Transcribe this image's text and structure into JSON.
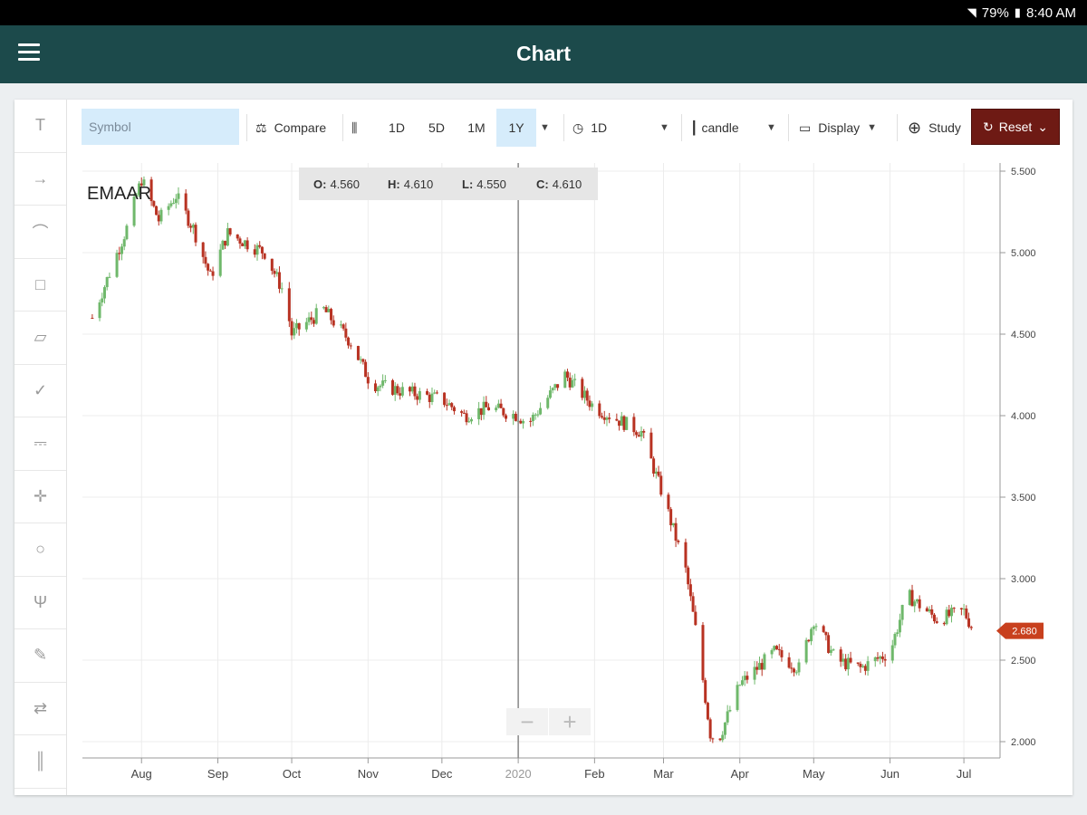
{
  "status_bar": {
    "battery": "79%",
    "time": "8:40 AM",
    "icons": [
      "wifi-icon",
      "battery-icon"
    ]
  },
  "app_bar": {
    "title": "Chart",
    "menu_icon": "hamburger-menu-icon"
  },
  "left_tools": [
    "text-tool-icon",
    "arrow-tool-icon",
    "arc-tool-icon",
    "callout-tool-icon",
    "rectangle-tool-icon",
    "check-tool-icon",
    "step-line-tool-icon",
    "crosshair-tool-icon",
    "ellipse-tool-icon",
    "pitchfork-tool-icon",
    "pencil-tool-icon",
    "parallel-lines-tool-icon",
    "vertical-lines-tool-icon"
  ],
  "toolbar": {
    "symbol_placeholder": "Symbol",
    "compare_label": "Compare",
    "periods": [
      "1D",
      "5D",
      "1M",
      "1Y"
    ],
    "active_period": "1Y",
    "interval_label": "1D",
    "chart_type_label": "candle",
    "display_label": "Display",
    "study_label": "Study",
    "reset_label": "Reset"
  },
  "ohlc": {
    "open_label": "O:",
    "open": "4.560",
    "high_label": "H:",
    "high": "4.610",
    "low_label": "L:",
    "low": "4.550",
    "close_label": "C:",
    "close": "4.610"
  },
  "colors": {
    "up": "#6fb86b",
    "down": "#b83222",
    "accent_dark": "#1c4a4b",
    "reset": "#6e1a14"
  },
  "chart_data": {
    "type": "candlestick",
    "symbol": "EMAAR",
    "x_tick_labels": [
      "Aug",
      "Sep",
      "Oct",
      "Nov",
      "Dec",
      "2020",
      "Feb",
      "Mar",
      "Apr",
      "May",
      "Jun",
      "Jul"
    ],
    "y_tick_labels": [
      "5.500",
      "5.000",
      "4.500",
      "4.000",
      "3.500",
      "3.000",
      "2.500",
      "2.000"
    ],
    "ylim": [
      1.9,
      5.55
    ],
    "current_price": "2.680",
    "grid": true,
    "approx_close_series": [
      {
        "date": "Jul 12",
        "close": 4.6
      },
      {
        "date": "Jul 26",
        "close": 5.15
      },
      {
        "date": "Aug 1",
        "close": 5.45
      },
      {
        "date": "Aug 8",
        "close": 5.2
      },
      {
        "date": "Aug 15",
        "close": 5.35
      },
      {
        "date": "Aug 22",
        "close": 5.15
      },
      {
        "date": "Aug 29",
        "close": 4.85
      },
      {
        "date": "Sep 5",
        "close": 5.12
      },
      {
        "date": "Sep 20",
        "close": 5.0
      },
      {
        "date": "Sep 28",
        "close": 4.75
      },
      {
        "date": "Oct 1",
        "close": 4.5
      },
      {
        "date": "Oct 14",
        "close": 4.65
      },
      {
        "date": "Oct 25",
        "close": 4.45
      },
      {
        "date": "Nov 2",
        "close": 4.2
      },
      {
        "date": "Nov 15",
        "close": 4.15
      },
      {
        "date": "Dec 1",
        "close": 4.1
      },
      {
        "date": "Dec 10",
        "close": 4.0
      },
      {
        "date": "Dec 20",
        "close": 4.05
      },
      {
        "date": "Jan 1",
        "close": 4.0
      },
      {
        "date": "Jan 5",
        "close": 3.95
      },
      {
        "date": "Jan 20",
        "close": 4.25
      },
      {
        "date": "Feb 1",
        "close": 4.05
      },
      {
        "date": "Feb 20",
        "close": 3.9
      },
      {
        "date": "Mar 1",
        "close": 3.5
      },
      {
        "date": "Mar 10",
        "close": 3.05
      },
      {
        "date": "Mar 15",
        "close": 2.6
      },
      {
        "date": "Mar 20",
        "close": 2.05
      },
      {
        "date": "Mar 23",
        "close": 2.0
      },
      {
        "date": "Apr 1",
        "close": 2.35
      },
      {
        "date": "Apr 15",
        "close": 2.55
      },
      {
        "date": "Apr 25",
        "close": 2.45
      },
      {
        "date": "May 1",
        "close": 2.75
      },
      {
        "date": "May 10",
        "close": 2.5
      },
      {
        "date": "May 20",
        "close": 2.45
      },
      {
        "date": "Jun 1",
        "close": 2.55
      },
      {
        "date": "Jun 8",
        "close": 2.9
      },
      {
        "date": "Jun 20",
        "close": 2.75
      },
      {
        "date": "Jul 1",
        "close": 2.8
      },
      {
        "date": "Jul 5",
        "close": 2.68
      }
    ]
  }
}
